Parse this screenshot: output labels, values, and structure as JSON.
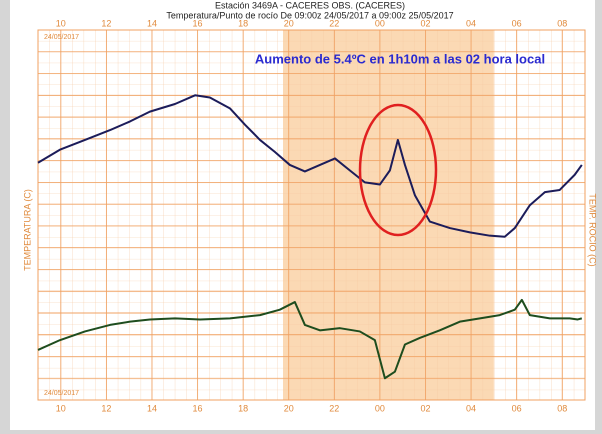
{
  "chart_data": {
    "type": "line",
    "title": "Estación 3469A - CACERES OBS. (CACERES)",
    "subtitle": "Temperatura/Punto de rocío De 09:00z 24/05/2017 a 09:00z 25/05/2017",
    "annotation": "Aumento de 5.4ºC en 1h10m a las 02 hora local",
    "date_labels": [
      "24/05/2017",
      "24/05/2017"
    ],
    "y_label": "TEMPERATURA (C)",
    "y2_label": "TEMP. ROCIO (C)",
    "xlim": [
      0,
      24
    ],
    "xticks": [
      {
        "value": 1,
        "label": "10"
      },
      {
        "value": 3,
        "label": "12"
      },
      {
        "value": 5,
        "label": "14"
      },
      {
        "value": 7,
        "label": "16"
      },
      {
        "value": 9,
        "label": "18"
      },
      {
        "value": 11,
        "label": "20"
      },
      {
        "value": 13,
        "label": "22"
      },
      {
        "value": 15,
        "label": "00"
      },
      {
        "value": 17,
        "label": "02"
      },
      {
        "value": 19,
        "label": "04"
      },
      {
        "value": 21,
        "label": "06"
      },
      {
        "value": 23,
        "label": "08"
      }
    ],
    "ylim": [
      0,
      34
    ],
    "yticks": [
      0,
      2,
      4,
      6,
      8,
      10,
      12,
      14,
      16,
      18,
      20,
      22,
      24,
      26,
      28,
      30,
      32,
      34
    ],
    "grid": true,
    "shade": [
      10.75,
      20
    ],
    "shade_color": "#fbd9b4",
    "grid_color": "#f0a060",
    "series": [
      {
        "color": "#1c1c5a",
        "x": [
          0,
          0.96,
          2.06,
          3.16,
          4.04,
          4.91,
          6.01,
          6.89,
          7.54,
          8.42,
          9.08,
          9.74,
          10.39,
          11.05,
          11.71,
          12.37,
          13.03,
          13.68,
          14.34,
          15.0,
          15.44,
          15.79,
          16.1,
          16.54,
          17.19,
          18.07,
          18.95,
          19.82,
          20.48,
          20.92,
          21.58,
          22.24,
          22.89,
          23.55,
          23.86
        ],
        "values": [
          21.8,
          23.0,
          23.9,
          24.8,
          25.6,
          26.5,
          27.2,
          28.0,
          27.8,
          26.8,
          25.3,
          23.9,
          22.8,
          21.6,
          21.0,
          21.6,
          22.2,
          21.1,
          20.0,
          19.8,
          21.1,
          23.9,
          21.6,
          18.8,
          16.4,
          15.8,
          15.4,
          15.1,
          15.0,
          15.8,
          17.9,
          19.1,
          19.3,
          20.7,
          21.6
        ]
      },
      {
        "color": "#1e4d1e",
        "x": [
          0,
          0.96,
          2.06,
          3.16,
          4.04,
          4.91,
          6.01,
          7.11,
          8.42,
          9.74,
          10.61,
          11.27,
          11.71,
          12.37,
          13.25,
          14.12,
          14.78,
          15.22,
          15.66,
          16.1,
          16.75,
          17.63,
          18.51,
          19.39,
          20.26,
          20.92,
          21.23,
          21.58,
          22.46,
          23.33,
          23.68,
          23.86
        ],
        "values": [
          4.6,
          5.5,
          6.3,
          6.9,
          7.2,
          7.4,
          7.5,
          7.4,
          7.5,
          7.8,
          8.3,
          9.0,
          6.9,
          6.4,
          6.6,
          6.3,
          5.5,
          2.0,
          2.6,
          5.1,
          5.7,
          6.4,
          7.2,
          7.5,
          7.8,
          8.3,
          9.2,
          7.8,
          7.5,
          7.5,
          7.4,
          7.5
        ]
      }
    ]
  }
}
